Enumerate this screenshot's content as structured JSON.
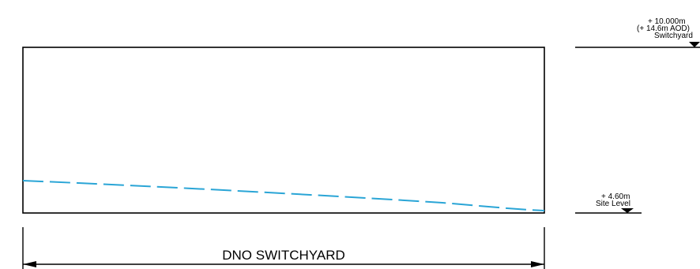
{
  "drawing": {
    "building_label": "DNO SWITCHYARD"
  },
  "levels": {
    "top": {
      "line1": "+ 10.000m",
      "line2": "(+ 14.6m AOD)",
      "line3": "Switchyard"
    },
    "site": {
      "line1": "+ 4.60m",
      "line2": "Site Level"
    }
  },
  "colors": {
    "outline": "#000000",
    "ground_profile": "#2aa5d6"
  }
}
